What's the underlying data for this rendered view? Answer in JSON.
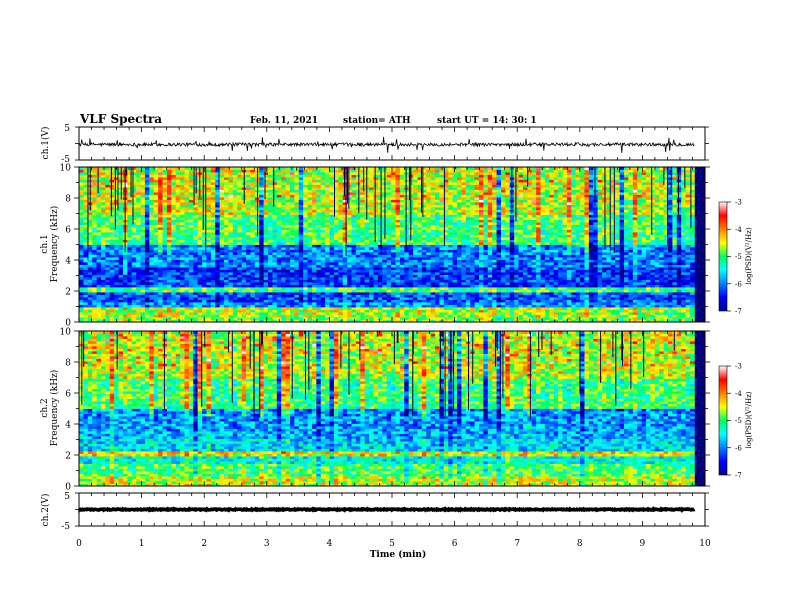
{
  "header": {
    "title": "VLF Spectra",
    "date": "Feb. 11, 2021",
    "station": "station= ATH",
    "start": "start  UT  =   14: 30: 1"
  },
  "chart_data": [
    {
      "type": "line",
      "id": "ch1-voltage",
      "ylabel": "ch.1(V)",
      "xlim": [
        0,
        10
      ],
      "ylim": [
        -5,
        5
      ],
      "yticks": [
        5,
        -5
      ],
      "x_extent": [
        0,
        9.83
      ],
      "baseline": -0.3,
      "noise_amplitude": 0.5,
      "spike_amplitude": 2.5
    },
    {
      "type": "heatmap",
      "id": "ch1-spectrogram",
      "ylabel": "ch.1\nFrequency (kHz)",
      "xlim": [
        0,
        10
      ],
      "ylim": [
        0,
        10
      ],
      "yticks": [
        0,
        2,
        4,
        6,
        8,
        10
      ],
      "x_extent": [
        0,
        9.83
      ],
      "colorbar": {
        "label": "log(PSD)(V²/Hz)",
        "range": [
          -7,
          -3
        ],
        "ticks": [
          -3,
          -4,
          -5,
          -6,
          -7
        ]
      },
      "bands": [
        {
          "from": 0.0,
          "to": 0.4,
          "level": -4.8
        },
        {
          "from": 0.4,
          "to": 1.0,
          "level": -4.6
        },
        {
          "from": 1.0,
          "to": 1.3,
          "level": -5.9
        },
        {
          "from": 1.3,
          "to": 2.0,
          "level": -6.2
        },
        {
          "from": 2.0,
          "to": 2.3,
          "level": -5.0
        },
        {
          "from": 2.3,
          "to": 3.5,
          "level": -6.3
        },
        {
          "from": 3.5,
          "to": 5.0,
          "level": -6.0
        },
        {
          "from": 5.0,
          "to": 7.0,
          "level": -5.0
        },
        {
          "from": 7.0,
          "to": 10.0,
          "level": -4.6
        }
      ]
    },
    {
      "type": "heatmap",
      "id": "ch2-spectrogram",
      "ylabel": "ch.2\nFrequency (kHz)",
      "xlim": [
        0,
        10
      ],
      "ylim": [
        0,
        10
      ],
      "yticks": [
        0,
        2,
        4,
        6,
        8,
        10
      ],
      "x_extent": [
        0,
        9.83
      ],
      "colorbar": {
        "label": "log(PSD)(V²/Hz)",
        "range": [
          -7,
          -3
        ],
        "ticks": [
          -3,
          -4,
          -5,
          -6,
          -7
        ]
      },
      "bands": [
        {
          "from": 0.0,
          "to": 0.6,
          "level": -4.6
        },
        {
          "from": 0.6,
          "to": 1.4,
          "level": -5.0
        },
        {
          "from": 1.4,
          "to": 1.9,
          "level": -5.4
        },
        {
          "from": 1.9,
          "to": 2.2,
          "level": -4.4
        },
        {
          "from": 2.2,
          "to": 3.0,
          "level": -5.6
        },
        {
          "from": 3.0,
          "to": 3.6,
          "level": -5.8
        },
        {
          "from": 3.6,
          "to": 5.0,
          "level": -5.9
        },
        {
          "from": 5.0,
          "to": 7.0,
          "level": -5.0
        },
        {
          "from": 7.0,
          "to": 10.0,
          "level": -4.6
        }
      ]
    },
    {
      "type": "line",
      "id": "ch2-voltage",
      "ylabel": "ch.2(V)",
      "xlabel": "Time (min)",
      "xlim": [
        0,
        10
      ],
      "ylim": [
        -5,
        5
      ],
      "yticks": [
        5,
        -5
      ],
      "xticks": [
        0,
        1,
        2,
        3,
        4,
        5,
        6,
        7,
        8,
        9,
        10
      ],
      "x_extent": [
        0,
        9.83
      ],
      "baseline": 0,
      "noise_amplitude": 0.15,
      "spike_amplitude": 0
    }
  ]
}
